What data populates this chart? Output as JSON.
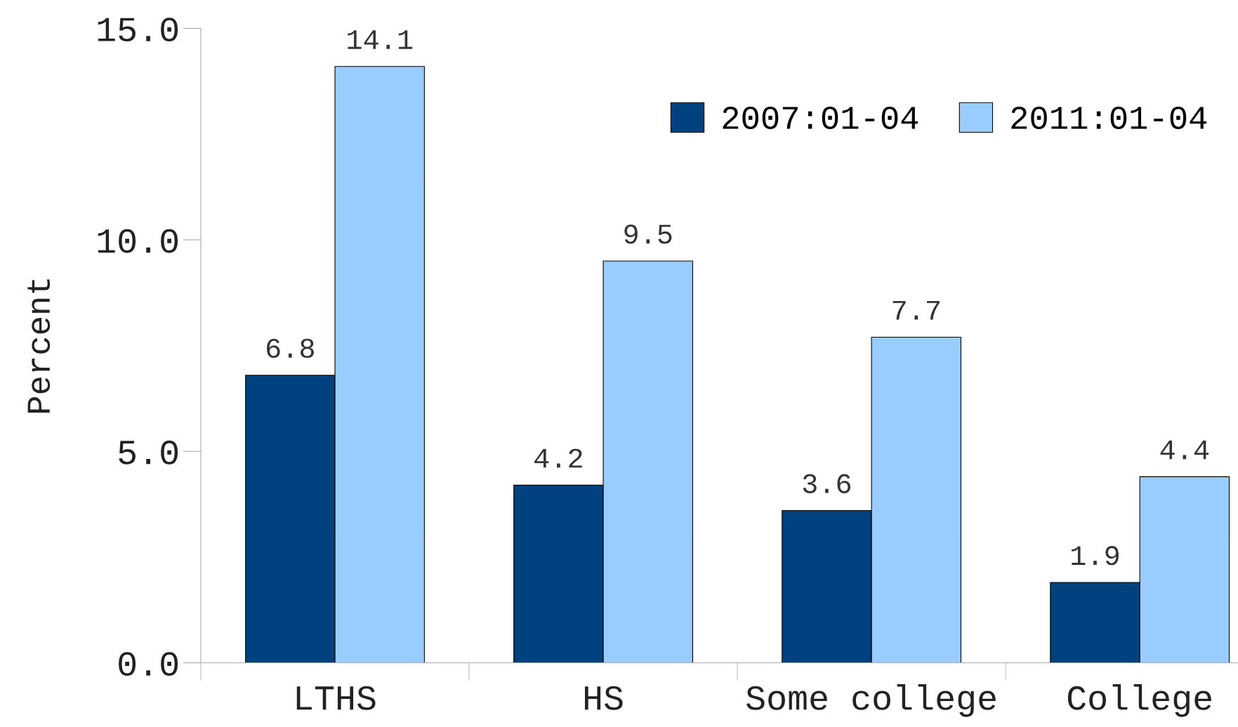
{
  "chart_data": {
    "type": "bar",
    "ylabel": "Percent",
    "categories": [
      "LTHS",
      "HS",
      "Some college",
      "College"
    ],
    "series": [
      {
        "name": "2007:01-04",
        "color": "#00427f",
        "values": [
          6.8,
          4.2,
          3.6,
          1.9
        ]
      },
      {
        "name": "2011:01-04",
        "color": "#99ccff",
        "values": [
          14.1,
          9.5,
          7.7,
          4.4
        ]
      }
    ],
    "ylim": [
      0,
      15
    ],
    "yticks": [
      {
        "value": 0,
        "label": "0.0"
      },
      {
        "value": 5,
        "label": "5.0"
      },
      {
        "value": 10,
        "label": "10.0"
      },
      {
        "value": 15,
        "label": "15.0"
      }
    ],
    "data_labels": true,
    "grid": false,
    "legend": "top right"
  }
}
